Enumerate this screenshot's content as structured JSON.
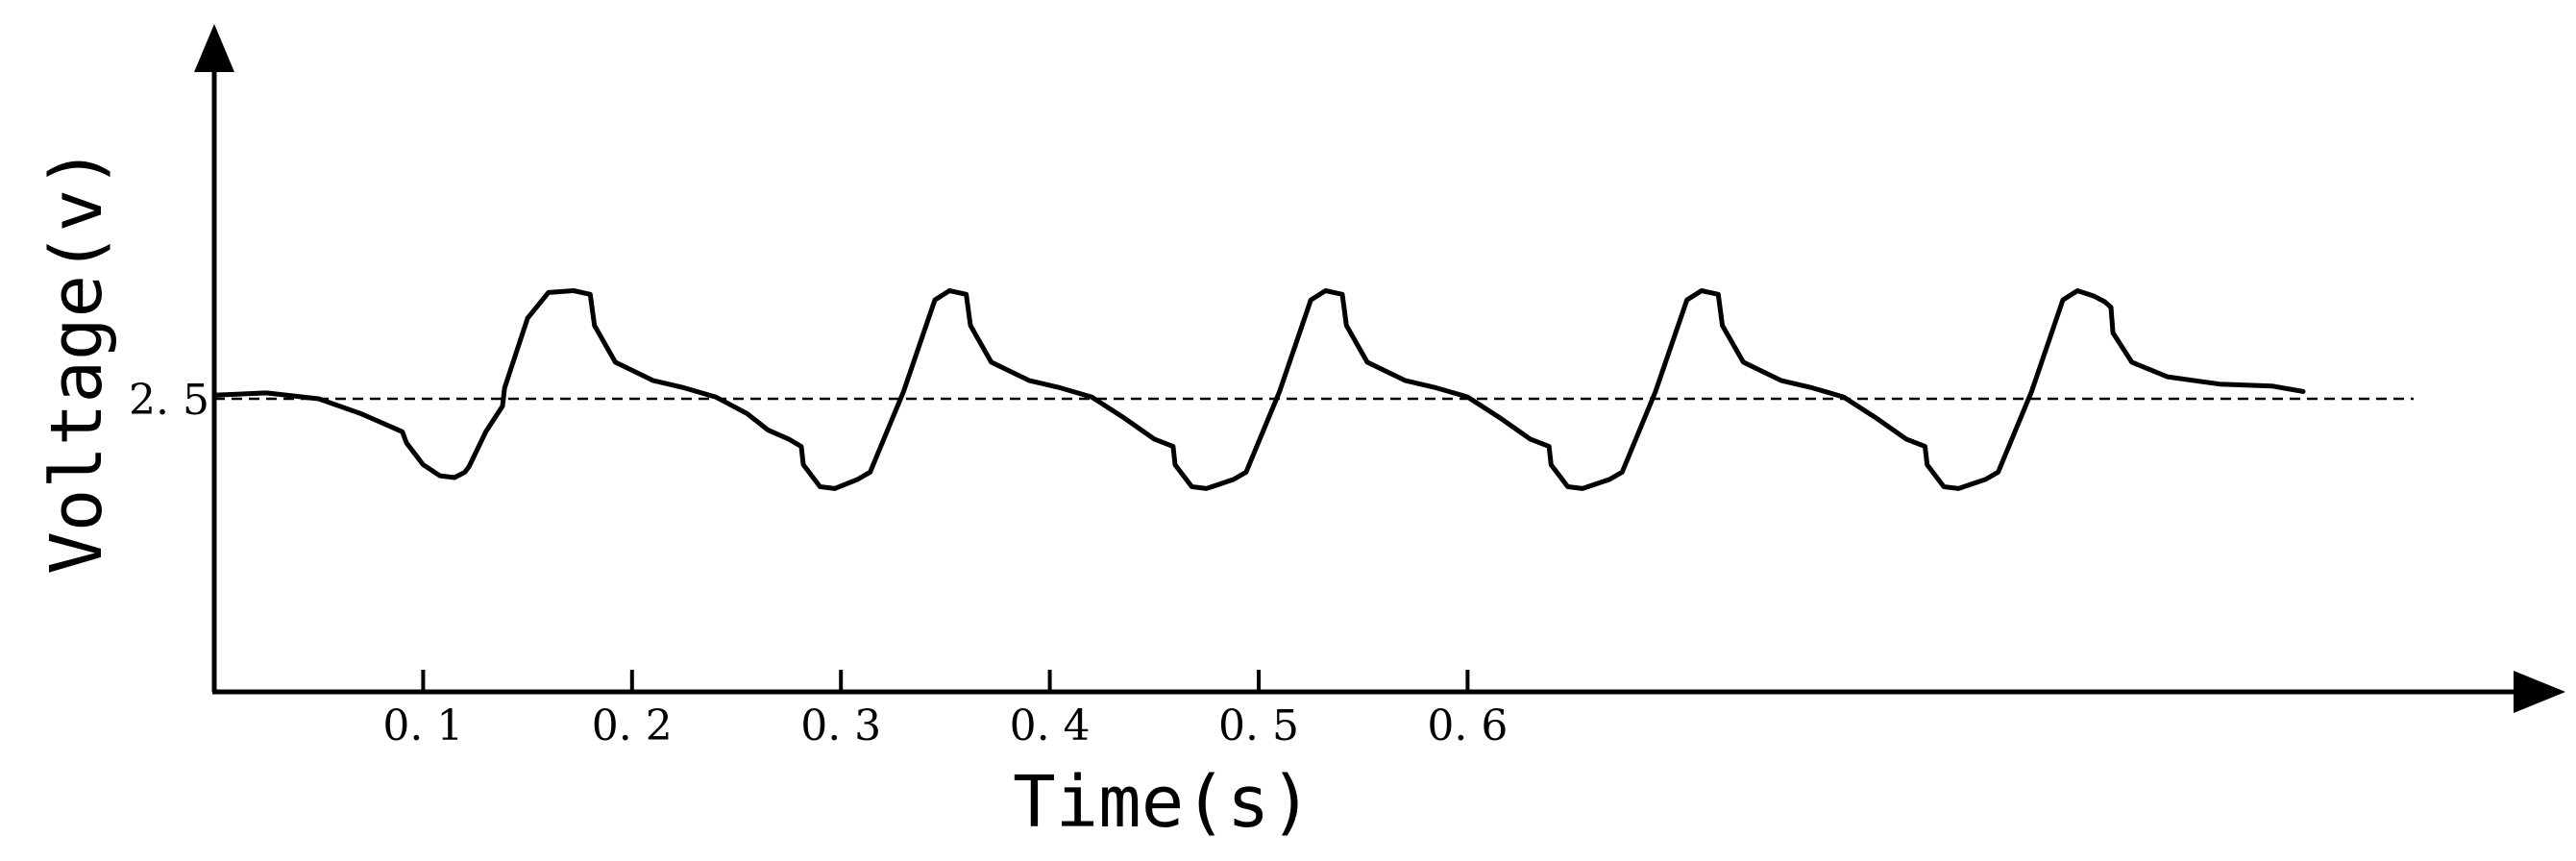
{
  "chart_data": {
    "type": "line",
    "title": "",
    "xlabel": "Time(s)",
    "ylabel": "Voltage(v)",
    "x_ticks": [
      "0.1",
      "0.2",
      "0.3",
      "0.4",
      "0.5",
      "0.6"
    ],
    "x_tick_values": [
      0.1,
      0.2,
      0.3,
      0.4,
      0.5,
      0.6
    ],
    "y_ticks": [
      "2.5"
    ],
    "y_tick_values": [
      2.5
    ],
    "xlim": [
      0,
      1.05
    ],
    "ylim": [
      1.7,
      3.3
    ],
    "grid": false,
    "legend": "none",
    "reference_line": {
      "y": 2.5,
      "style": "dashed"
    },
    "series": [
      {
        "color": "#000000",
        "points": [
          [
            0.0,
            2.51
          ],
          [
            0.025,
            2.516
          ],
          [
            0.05,
            2.5
          ],
          [
            0.07,
            2.46
          ],
          [
            0.09,
            2.41
          ],
          [
            0.092,
            2.38
          ],
          [
            0.1,
            2.32
          ],
          [
            0.108,
            2.29
          ],
          [
            0.115,
            2.285
          ],
          [
            0.12,
            2.3
          ],
          [
            0.122,
            2.315
          ],
          [
            0.13,
            2.41
          ],
          [
            0.138,
            2.48
          ],
          [
            0.139,
            2.53
          ],
          [
            0.15,
            2.72
          ],
          [
            0.16,
            2.79
          ],
          [
            0.172,
            2.795
          ],
          [
            0.18,
            2.785
          ],
          [
            0.182,
            2.7
          ],
          [
            0.192,
            2.6
          ],
          [
            0.21,
            2.55
          ],
          [
            0.225,
            2.53
          ],
          [
            0.24,
            2.505
          ],
          [
            0.255,
            2.46
          ],
          [
            0.265,
            2.415
          ],
          [
            0.275,
            2.39
          ],
          [
            0.281,
            2.37
          ],
          [
            0.282,
            2.32
          ],
          [
            0.29,
            2.26
          ],
          [
            0.297,
            2.255
          ],
          [
            0.308,
            2.28
          ],
          [
            0.314,
            2.3
          ],
          [
            0.33,
            2.52
          ],
          [
            0.345,
            2.77
          ],
          [
            0.352,
            2.795
          ],
          [
            0.36,
            2.785
          ],
          [
            0.362,
            2.7
          ],
          [
            0.372,
            2.6
          ],
          [
            0.39,
            2.55
          ],
          [
            0.405,
            2.53
          ],
          [
            0.42,
            2.505
          ],
          [
            0.435,
            2.45
          ],
          [
            0.45,
            2.39
          ],
          [
            0.459,
            2.37
          ],
          [
            0.46,
            2.32
          ],
          [
            0.468,
            2.26
          ],
          [
            0.475,
            2.255
          ],
          [
            0.488,
            2.28
          ],
          [
            0.494,
            2.3
          ],
          [
            0.51,
            2.52
          ],
          [
            0.525,
            2.77
          ],
          [
            0.532,
            2.795
          ],
          [
            0.54,
            2.785
          ],
          [
            0.542,
            2.7
          ],
          [
            0.552,
            2.6
          ],
          [
            0.57,
            2.55
          ],
          [
            0.585,
            2.53
          ],
          [
            0.6,
            2.505
          ],
          [
            0.615,
            2.45
          ],
          [
            0.63,
            2.39
          ],
          [
            0.639,
            2.37
          ],
          [
            0.64,
            2.32
          ],
          [
            0.648,
            2.26
          ],
          [
            0.655,
            2.255
          ],
          [
            0.668,
            2.28
          ],
          [
            0.674,
            2.3
          ],
          [
            0.69,
            2.52
          ],
          [
            0.705,
            2.77
          ],
          [
            0.712,
            2.795
          ],
          [
            0.72,
            2.785
          ],
          [
            0.722,
            2.7
          ],
          [
            0.732,
            2.6
          ],
          [
            0.75,
            2.55
          ],
          [
            0.765,
            2.53
          ],
          [
            0.78,
            2.505
          ],
          [
            0.795,
            2.45
          ],
          [
            0.81,
            2.39
          ],
          [
            0.819,
            2.37
          ],
          [
            0.82,
            2.32
          ],
          [
            0.828,
            2.26
          ],
          [
            0.835,
            2.255
          ],
          [
            0.848,
            2.28
          ],
          [
            0.854,
            2.3
          ],
          [
            0.87,
            2.52
          ],
          [
            0.885,
            2.77
          ],
          [
            0.892,
            2.795
          ],
          [
            0.9,
            2.78
          ],
          [
            0.905,
            2.765
          ],
          [
            0.908,
            2.75
          ],
          [
            0.909,
            2.68
          ],
          [
            0.918,
            2.6
          ],
          [
            0.935,
            2.56
          ],
          [
            0.96,
            2.54
          ],
          [
            0.985,
            2.535
          ],
          [
            1.0,
            2.52
          ]
        ]
      }
    ]
  }
}
